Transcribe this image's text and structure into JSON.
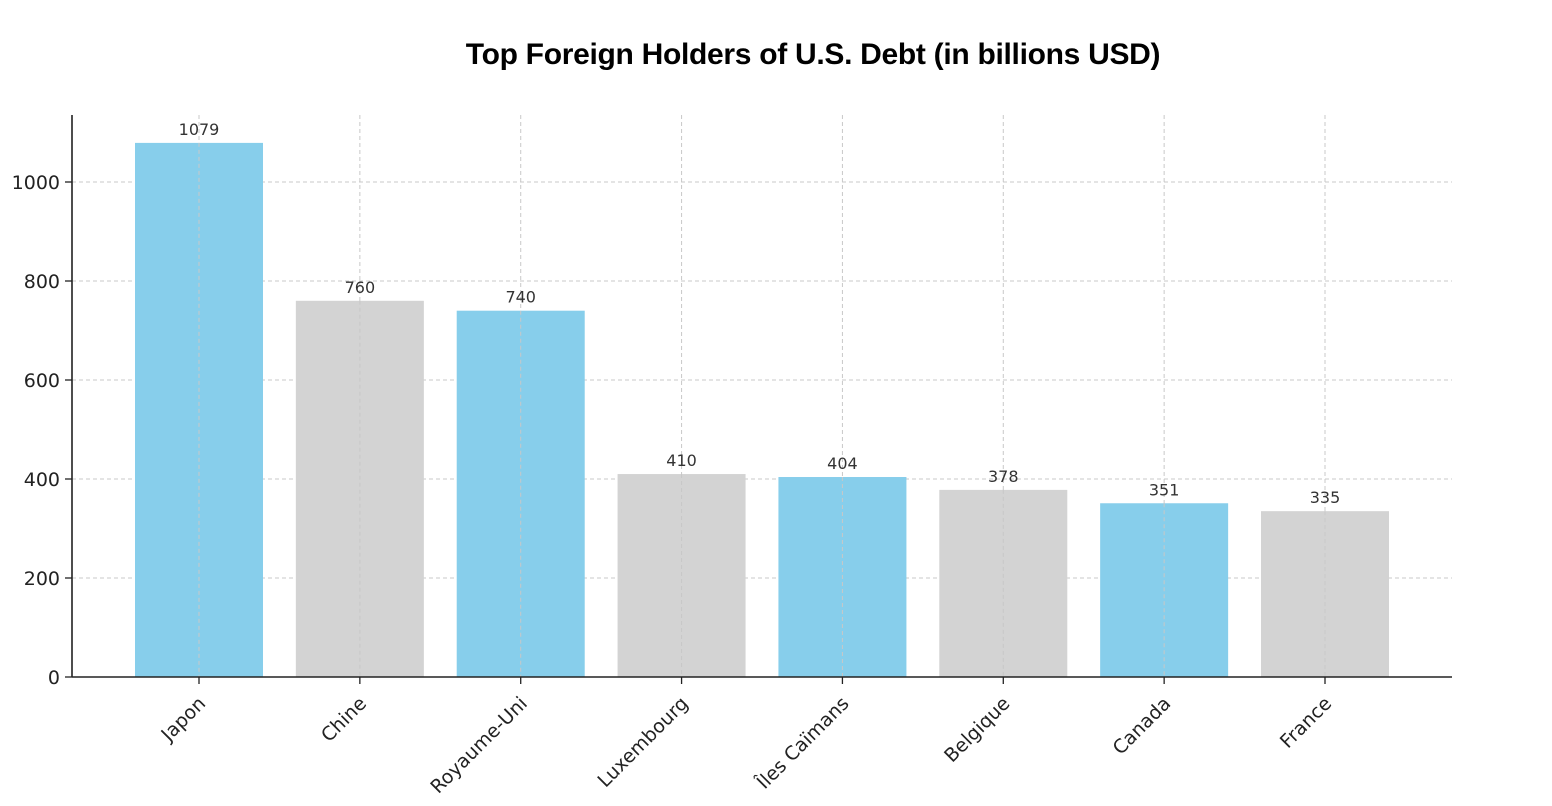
{
  "chart_data": {
    "type": "bar",
    "title": "Top Foreign Holders of U.S. Debt (in billions USD)",
    "xlabel": "",
    "ylabel": "",
    "categories": [
      "Japon",
      "Chine",
      "Royaume-Uni",
      "Luxembourg",
      "Îles Caïmans",
      "Belgique",
      "Canada",
      "France"
    ],
    "values": [
      1079,
      760,
      740,
      410,
      404,
      378,
      351,
      335
    ],
    "data_labels": [
      "1079",
      "760",
      "740",
      "410",
      "404",
      "378",
      "351",
      "335"
    ],
    "bar_colors": [
      "#87ceeb",
      "#d3d3d3",
      "#87ceeb",
      "#d3d3d3",
      "#87ceeb",
      "#d3d3d3",
      "#87ceeb",
      "#d3d3d3"
    ],
    "ylim": [
      0,
      1130
    ],
    "yticks": [
      0,
      200,
      400,
      600,
      800,
      1000
    ],
    "ytick_labels": [
      "0",
      "200",
      "400",
      "600",
      "800",
      "1000"
    ],
    "grid": true,
    "legend": false
  }
}
